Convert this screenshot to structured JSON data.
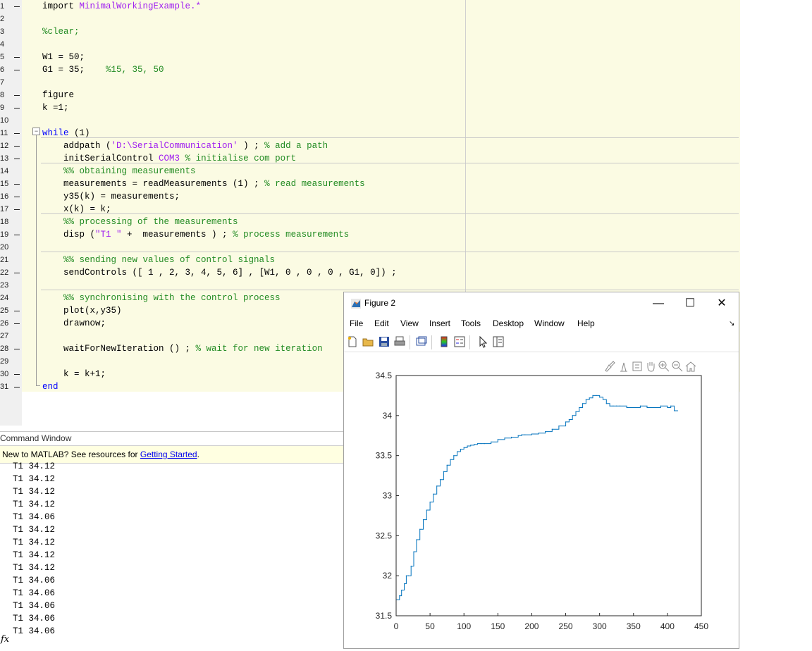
{
  "editor": {
    "lines": [
      {
        "n": "1",
        "dash": true,
        "parts": [
          [
            "",
            "import "
          ],
          [
            "str",
            "MinimalWorkingExample.*"
          ]
        ]
      },
      {
        "n": "2",
        "dash": false,
        "parts": []
      },
      {
        "n": "3",
        "dash": false,
        "parts": [
          [
            "com",
            "%clear;"
          ]
        ]
      },
      {
        "n": "4",
        "dash": false,
        "parts": []
      },
      {
        "n": "5",
        "dash": true,
        "parts": [
          [
            "",
            "W1 = 50;"
          ]
        ]
      },
      {
        "n": "6",
        "dash": true,
        "parts": [
          [
            "",
            "G1 = 35;    "
          ],
          [
            "com",
            "%15, 35, 50"
          ]
        ]
      },
      {
        "n": "7",
        "dash": false,
        "parts": []
      },
      {
        "n": "8",
        "dash": true,
        "parts": [
          [
            "",
            "figure"
          ]
        ]
      },
      {
        "n": "9",
        "dash": true,
        "parts": [
          [
            "",
            "k =1;"
          ]
        ]
      },
      {
        "n": "10",
        "dash": false,
        "parts": []
      },
      {
        "n": "11",
        "dash": true,
        "parts": [
          [
            "kw",
            "while"
          ],
          [
            "",
            " (1)"
          ]
        ]
      },
      {
        "n": "12",
        "dash": true,
        "parts": [
          [
            "",
            "    addpath ("
          ],
          [
            "str",
            "'D:\\SerialCommunication'"
          ],
          [
            "",
            " ) ; "
          ],
          [
            "com",
            "% add a path"
          ]
        ]
      },
      {
        "n": "13",
        "dash": true,
        "parts": [
          [
            "",
            "    initSerialControl "
          ],
          [
            "str",
            "COM3"
          ],
          [
            "",
            " "
          ],
          [
            "com",
            "% initialise com port"
          ]
        ]
      },
      {
        "n": "14",
        "dash": false,
        "parts": [
          [
            "com",
            "    %% obtaining measurements"
          ]
        ]
      },
      {
        "n": "15",
        "dash": true,
        "parts": [
          [
            "",
            "    measurements = readMeasurements (1) ; "
          ],
          [
            "com",
            "% read measurements"
          ]
        ]
      },
      {
        "n": "16",
        "dash": true,
        "parts": [
          [
            "",
            "    y35(k) = measurements;"
          ]
        ]
      },
      {
        "n": "17",
        "dash": true,
        "parts": [
          [
            "",
            "    x(k) = k;"
          ]
        ]
      },
      {
        "n": "18",
        "dash": false,
        "parts": [
          [
            "com",
            "    %% processing of the measurements"
          ]
        ]
      },
      {
        "n": "19",
        "dash": true,
        "parts": [
          [
            "",
            "    disp ("
          ],
          [
            "str",
            "\"T1 \""
          ],
          [
            "",
            " +  measurements ) ; "
          ],
          [
            "com",
            "% process measurements"
          ]
        ]
      },
      {
        "n": "20",
        "dash": false,
        "parts": []
      },
      {
        "n": "21",
        "dash": false,
        "parts": [
          [
            "com",
            "    %% sending new values of control signals"
          ]
        ]
      },
      {
        "n": "22",
        "dash": true,
        "parts": [
          [
            "",
            "    sendControls ([ 1 , 2, 3, 4, 5, 6] , [W1, 0 , 0 , 0 , G1, 0]) ;"
          ]
        ]
      },
      {
        "n": "23",
        "dash": false,
        "parts": []
      },
      {
        "n": "24",
        "dash": false,
        "parts": [
          [
            "com",
            "    %% synchronising with the control process"
          ]
        ]
      },
      {
        "n": "25",
        "dash": true,
        "parts": [
          [
            "",
            "    plot(x,y35)"
          ]
        ]
      },
      {
        "n": "26",
        "dash": true,
        "parts": [
          [
            "",
            "    drawnow;"
          ]
        ]
      },
      {
        "n": "27",
        "dash": false,
        "parts": []
      },
      {
        "n": "28",
        "dash": true,
        "parts": [
          [
            "",
            "    waitForNewIteration () ; "
          ],
          [
            "com",
            "% wait for new iteration"
          ]
        ]
      },
      {
        "n": "29",
        "dash": false,
        "parts": []
      },
      {
        "n": "30",
        "dash": true,
        "parts": [
          [
            "",
            "    k = k+1;"
          ]
        ]
      },
      {
        "n": "31",
        "dash": true,
        "parts": [
          [
            "kw",
            "end"
          ]
        ]
      }
    ]
  },
  "command_window": {
    "title": "Command Window",
    "banner_text": "New to MATLAB? See resources for ",
    "banner_link": "Getting Started",
    "banner_period": ".",
    "lines": [
      "T1 34.12",
      "T1 34.12",
      "T1 34.12",
      "T1 34.12",
      "T1 34.06",
      "T1 34.12",
      "T1 34.12",
      "T1 34.12",
      "T1 34.12",
      "T1 34.06",
      "T1 34.06",
      "T1 34.06",
      "T1 34.06",
      "T1 34.06"
    ],
    "prompt": "fx"
  },
  "figure": {
    "title": "Figure 2",
    "minimize": "—",
    "maximize": "☐",
    "close": "✕",
    "menu": [
      "File",
      "Edit",
      "View",
      "Insert",
      "Tools",
      "Desktop",
      "Window",
      "Help"
    ],
    "dock_arrow": "↘"
  },
  "chart_data": {
    "type": "line",
    "title": "",
    "xlabel": "",
    "ylabel": "",
    "xlim": [
      0,
      450
    ],
    "ylim": [
      31.5,
      34.5
    ],
    "xticks": [
      "0",
      "50",
      "100",
      "150",
      "200",
      "250",
      "300",
      "350",
      "400",
      "450"
    ],
    "yticks": [
      "31.5",
      "32",
      "32.5",
      "33",
      "33.5",
      "34",
      "34.5"
    ],
    "color": "#0072bd",
    "x": [
      1,
      5,
      8,
      12,
      15,
      18,
      22,
      26,
      30,
      35,
      40,
      45,
      50,
      55,
      60,
      65,
      70,
      75,
      80,
      85,
      90,
      95,
      100,
      105,
      110,
      115,
      120,
      125,
      130,
      140,
      150,
      160,
      170,
      180,
      185,
      190,
      200,
      210,
      220,
      230,
      240,
      250,
      255,
      260,
      265,
      270,
      275,
      280,
      285,
      290,
      295,
      300,
      305,
      310,
      315,
      320,
      325,
      330,
      340,
      350,
      360,
      370,
      380,
      390,
      400,
      405,
      410,
      415
    ],
    "y": [
      31.7,
      31.75,
      31.82,
      31.9,
      32.0,
      32.0,
      32.12,
      32.3,
      32.45,
      32.58,
      32.7,
      32.82,
      32.92,
      33.02,
      33.12,
      33.2,
      33.3,
      33.38,
      33.45,
      33.5,
      33.55,
      33.58,
      33.6,
      33.62,
      33.63,
      33.64,
      33.65,
      33.65,
      33.65,
      33.67,
      33.7,
      33.72,
      33.73,
      33.75,
      33.76,
      33.76,
      33.77,
      33.78,
      33.8,
      33.83,
      33.87,
      33.92,
      33.95,
      34.0,
      34.05,
      34.1,
      34.15,
      34.2,
      34.22,
      34.25,
      34.25,
      34.23,
      34.2,
      34.15,
      34.12,
      34.12,
      34.12,
      34.12,
      34.1,
      34.1,
      34.12,
      34.1,
      34.1,
      34.12,
      34.1,
      34.12,
      34.06,
      34.06
    ]
  }
}
